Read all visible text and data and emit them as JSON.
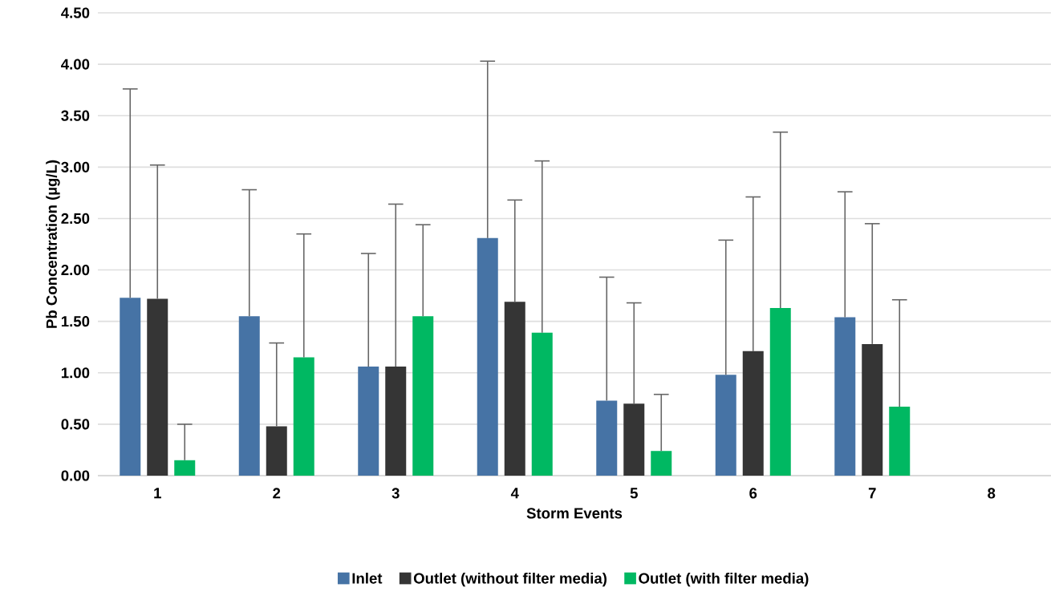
{
  "chart_data": {
    "type": "bar",
    "xlabel": "Storm Events",
    "ylabel": "Pb Concentration (µg/L)",
    "categories": [
      "1",
      "2",
      "3",
      "4",
      "5",
      "6",
      "7",
      "8"
    ],
    "series": [
      {
        "name": "Inlet",
        "color": "#4673a5",
        "values": [
          1.73,
          1.55,
          1.06,
          2.31,
          0.73,
          0.98,
          1.54,
          null
        ],
        "errors": [
          [
            1.73,
            3.76
          ],
          [
            1.55,
            2.78
          ],
          [
            1.06,
            2.16
          ],
          [
            2.31,
            4.03
          ],
          [
            0.73,
            1.93
          ],
          [
            0.98,
            2.29
          ],
          [
            1.54,
            2.76
          ],
          null
        ]
      },
      {
        "name": "Outlet (without filter media)",
        "color": "#353535",
        "values": [
          1.72,
          0.48,
          1.06,
          1.69,
          0.7,
          1.21,
          1.28,
          null
        ],
        "errors": [
          [
            1.72,
            3.02
          ],
          [
            0.48,
            1.29
          ],
          [
            1.06,
            2.64
          ],
          [
            1.69,
            2.68
          ],
          [
            0.7,
            1.68
          ],
          [
            1.21,
            2.71
          ],
          [
            1.28,
            2.45
          ],
          null
        ]
      },
      {
        "name": "Outlet (with filter media)",
        "color": "#00b862",
        "values": [
          0.15,
          1.15,
          1.55,
          1.39,
          0.24,
          1.63,
          0.67,
          null
        ],
        "errors": [
          [
            0.15,
            0.5
          ],
          [
            1.15,
            2.35
          ],
          [
            1.55,
            2.44
          ],
          [
            1.39,
            3.06
          ],
          [
            0.24,
            0.79
          ],
          [
            1.63,
            3.34
          ],
          [
            0.67,
            1.71
          ],
          null
        ]
      }
    ],
    "ylim": [
      0,
      4.5
    ],
    "yticks": [
      {
        "value": 0,
        "label": "0.00"
      },
      {
        "value": 0.5,
        "label": "0.50"
      },
      {
        "value": 1,
        "label": "1.00"
      },
      {
        "value": 1.5,
        "label": "1.50"
      },
      {
        "value": 2,
        "label": "2.00"
      },
      {
        "value": 2.5,
        "label": "2.50"
      },
      {
        "value": 3,
        "label": "3.00"
      },
      {
        "value": 3.5,
        "label": "3.50"
      },
      {
        "value": 4,
        "label": "4.00"
      },
      {
        "value": 4.5,
        "label": "4.50"
      }
    ],
    "grid": "y",
    "legend": "bottom"
  }
}
